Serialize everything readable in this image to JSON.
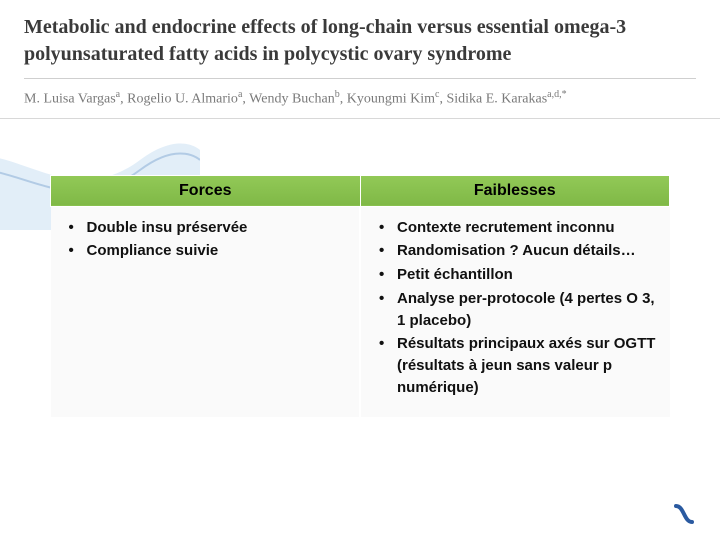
{
  "header": {
    "title": "Metabolic and endocrine effects of long-chain versus essential omega-3 polyunsaturated fatty acids in polycystic ovary syndrome",
    "authors_html": "M. Luisa Vargas<sup>a</sup>, Rogelio U. Almario<sup>a</sup>, Wendy Buchan<sup>b</sup>, Kyoungmi Kim<sup>c</sup>, Sidika E. Karakas<sup>a,d,*</sup>"
  },
  "table": {
    "header_color": "#88c24a",
    "cell_bg": "#fafafa",
    "columns": [
      {
        "label": "Forces"
      },
      {
        "label": "Faiblesses"
      }
    ],
    "rows": [
      {
        "forces": [
          "Double insu préservée",
          "Compliance suivie"
        ],
        "faiblesses": [
          "Contexte recrutement inconnu",
          "Randomisation ? Aucun détails…",
          "Petit échantillon",
          "Analyse per-protocole (4 pertes O 3, 1 placebo)",
          "Résultats principaux axés sur OGTT (résultats à jeun sans valeur p numérique)"
        ]
      }
    ]
  },
  "accent": {
    "color": "#2a5aa0"
  }
}
